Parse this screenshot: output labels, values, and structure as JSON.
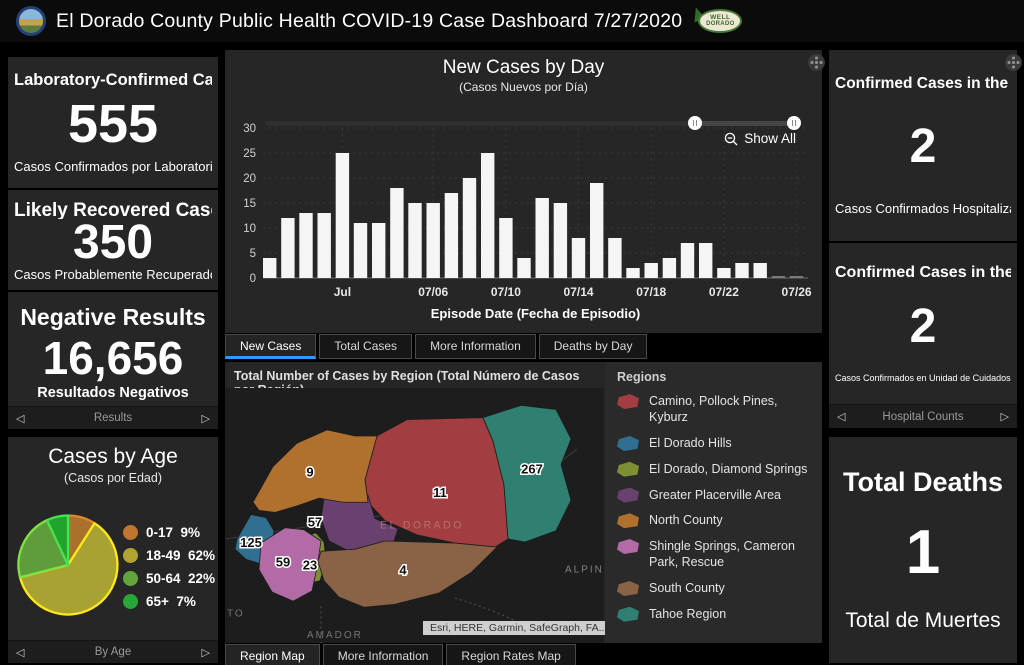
{
  "header": {
    "title": "El Dorado County Public Health COVID-19 Case Dashboard 7/27/2020",
    "well_logo_line1": "WELL",
    "well_logo_line2": "DORADO"
  },
  "icons": {
    "prev": "◁",
    "next": "▷"
  },
  "panels": {
    "lab": {
      "title": "Laboratory-Confirmed Cases",
      "value": "555",
      "subtitle": "Casos Confirmados por Laboratorio"
    },
    "recovered": {
      "title": "Likely Recovered Cases",
      "value": "350",
      "subtitle": "Casos Probablemente Recuperados"
    },
    "negative": {
      "title": "Negative Results",
      "value": "16,656",
      "subtitle": "Resultados Negativos"
    },
    "results_footer": "Results",
    "age_footer": "By Age",
    "hospital": {
      "title": "Confirmed Cases in the Hospital",
      "value": "2",
      "subtitle": "Casos Confirmados Hospitalizados"
    },
    "icu": {
      "title": "Confirmed Cases in the ICU",
      "value": "2",
      "subtitle": "Casos Confirmados en Unidad de Cuidados Intensivos (UCI)"
    },
    "hospital_footer": "Hospital Counts",
    "deaths": {
      "title": "Total Deaths",
      "value": "1",
      "subtitle": "Total de Muertes"
    }
  },
  "chart_tabs": [
    {
      "label": "New Cases",
      "active": true
    },
    {
      "label": "Total Cases"
    },
    {
      "label": "More Information"
    },
    {
      "label": "Deaths by Day"
    }
  ],
  "map_tabs": [
    {
      "label": "Region Map",
      "active": true
    },
    {
      "label": "More Information"
    },
    {
      "label": "Region Rates Map"
    }
  ],
  "chart_data": [
    {
      "type": "bar",
      "title": "New Cases by Day",
      "subtitle": "(Casos Nuevos por Día)",
      "xlabel": "Episode Date (Fecha de Episodio)",
      "ylabel": "",
      "ylim": [
        0,
        30
      ],
      "yticks": [
        0,
        5,
        10,
        15,
        20,
        25,
        30
      ],
      "x_tick_labels": [
        "Jul",
        "07/06",
        "07/10",
        "07/14",
        "07/18",
        "07/22",
        "07/26"
      ],
      "x_tick_positions": [
        4,
        9,
        13,
        17,
        21,
        25,
        29
      ],
      "values": [
        4,
        12,
        13,
        13,
        25,
        11,
        11,
        18,
        15,
        15,
        17,
        20,
        25,
        12,
        4,
        16,
        15,
        8,
        19,
        8,
        2,
        3,
        4,
        7,
        7,
        2,
        3,
        3,
        0,
        0
      ],
      "muted_from_index": 28,
      "bar_color": "#f5f5f5",
      "show_all_label": "Show All",
      "grid": true,
      "legend_position": "none"
    },
    {
      "type": "pie",
      "title": "Cases by Age",
      "subtitle": "(Casos por Edad)",
      "slices": [
        {
          "label": "0-17",
          "pct": 9,
          "fill": "#a9712c",
          "stroke": "#e2882b",
          "dot": "#c0762e"
        },
        {
          "label": "18-49",
          "pct": 62,
          "fill": "#a8a232",
          "stroke": "#ffe71c",
          "dot": "#b2a42f"
        },
        {
          "label": "50-64",
          "pct": 22,
          "fill": "#5f9c3c",
          "stroke": "#7fe23f",
          "dot": "#63a43c"
        },
        {
          "label": "65+",
          "pct": 7,
          "fill": "#1fa42c",
          "stroke": "#4bdf52",
          "dot": "#27a737"
        }
      ],
      "legend_position": "right"
    }
  ],
  "map": {
    "title": "Total Number of Cases by Region (Total Número de Casos por Región)",
    "legend_title": "Regions",
    "regions": [
      {
        "name": "Camino, Pollock Pines, Kyburz",
        "color": "#a23d41",
        "count": "11"
      },
      {
        "name": "El Dorado Hills",
        "color": "#2f7091",
        "count": "125"
      },
      {
        "name": "El Dorado, Diamond Springs",
        "color": "#7d8f33",
        "count": "23"
      },
      {
        "name": "Greater Placerville Area",
        "color": "#69416f",
        "count": "57"
      },
      {
        "name": "North County",
        "color": "#b0712f",
        "count": "9"
      },
      {
        "name": "Shingle Springs, Cameron Park, Rescue",
        "color": "#b26ba6",
        "count": "59"
      },
      {
        "name": "South County",
        "color": "#8a6246",
        "count": "4"
      },
      {
        "name": "Tahoe Region",
        "color": "#2f8071",
        "count": "267"
      }
    ],
    "place_labels": [
      "EL DORADO",
      "ALPINE",
      "AMADOR",
      "TO"
    ],
    "attribution": "Esri, HERE, Garmin, SafeGraph, FA..."
  }
}
